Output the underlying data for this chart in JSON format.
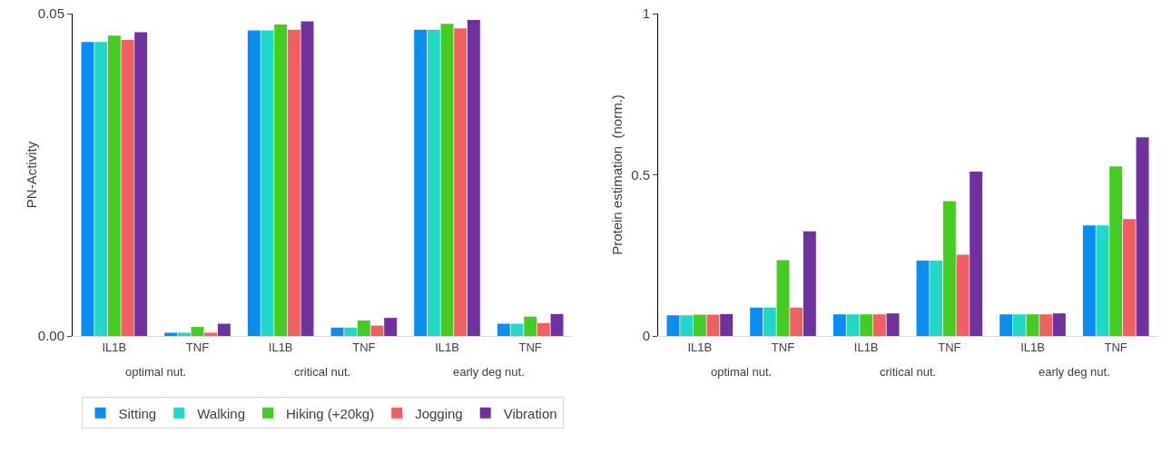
{
  "chart_data": [
    {
      "type": "bar",
      "ylabel": "PN-Activity",
      "categories": [
        "IL1B",
        "TNF",
        "IL1B",
        "TNF",
        "IL1B",
        "TNF"
      ],
      "annotations": [
        "optimal nut.",
        "critical nut.",
        "early deg nut."
      ],
      "series": [
        {
          "name": "Sitting",
          "color": "#0a8cf0",
          "values": [
            0.0456,
            0.0005,
            0.0474,
            0.0013,
            0.0475,
            0.0019
          ]
        },
        {
          "name": "Walking",
          "color": "#20d8c8",
          "values": [
            0.0456,
            0.0005,
            0.0474,
            0.0013,
            0.0475,
            0.0019
          ]
        },
        {
          "name": "Hiking (+20kg)",
          "color": "#44cc22",
          "values": [
            0.0466,
            0.0014,
            0.0483,
            0.0024,
            0.0484,
            0.003
          ]
        },
        {
          "name": "Jogging",
          "color": "#f06060",
          "values": [
            0.0459,
            0.0005,
            0.0475,
            0.0016,
            0.0477,
            0.002
          ]
        },
        {
          "name": "Vibration",
          "color": "#7030a0",
          "values": [
            0.0471,
            0.0019,
            0.0488,
            0.0028,
            0.049,
            0.0034
          ]
        }
      ],
      "ylim": [
        0,
        0.05
      ],
      "yticks": [
        {
          "value": 0,
          "label": "0.00"
        },
        {
          "value": 0.05,
          "label": "0.05"
        }
      ],
      "grid": false,
      "legend": "bottom"
    },
    {
      "type": "bar",
      "ylabel": "Protein estimation  (norm.)",
      "categories": [
        "IL1B",
        "TNF",
        "IL1B",
        "TNF",
        "IL1B",
        "TNF"
      ],
      "annotations": [
        "optimal nut.",
        "critical nut.",
        "early deg nut."
      ],
      "series": [
        {
          "color": "#0a8cf0",
          "values": [
            0.064,
            0.088,
            0.067,
            0.234,
            0.067,
            0.343
          ]
        },
        {
          "color": "#20d8c8",
          "values": [
            0.064,
            0.088,
            0.067,
            0.234,
            0.067,
            0.343
          ]
        },
        {
          "color": "#44cc22",
          "values": [
            0.066,
            0.235,
            0.067,
            0.418,
            0.067,
            0.526
          ]
        },
        {
          "color": "#f06060",
          "values": [
            0.066,
            0.088,
            0.067,
            0.252,
            0.067,
            0.363
          ]
        },
        {
          "color": "#7030a0",
          "values": [
            0.068,
            0.325,
            0.07,
            0.51,
            0.07,
            0.616
          ]
        }
      ],
      "ylim": [
        0,
        1
      ],
      "yticks": [
        0,
        0.5,
        1
      ],
      "grid": false,
      "legend": false
    }
  ]
}
